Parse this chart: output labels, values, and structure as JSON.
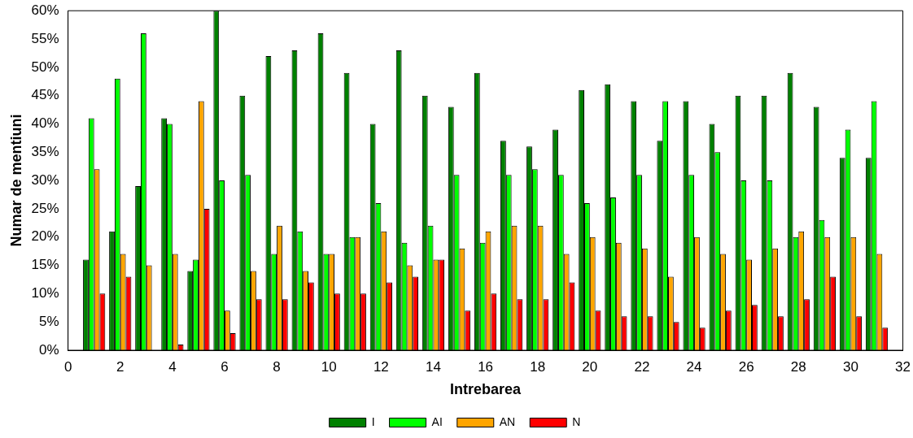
{
  "chart_data": {
    "type": "bar",
    "xlabel": "Intrebarea",
    "ylabel": "Numar de mentiuni",
    "x": [
      1,
      2,
      3,
      4,
      5,
      6,
      7,
      8,
      9,
      10,
      11,
      12,
      13,
      14,
      15,
      16,
      17,
      18,
      19,
      20,
      21,
      22,
      23,
      24,
      25,
      26,
      27,
      28,
      29,
      30,
      31
    ],
    "series": [
      {
        "name": "I",
        "color": "#008000",
        "values": [
          16,
          21,
          29,
          41,
          14,
          60,
          45,
          52,
          53,
          56,
          49,
          40,
          53,
          45,
          43,
          49,
          37,
          36,
          39,
          46,
          47,
          44,
          37,
          44,
          40,
          45,
          45,
          49,
          43,
          34,
          34
        ]
      },
      {
        "name": "AI",
        "color": "#00ff00",
        "values": [
          41,
          48,
          56,
          40,
          16,
          30,
          31,
          17,
          21,
          17,
          20,
          26,
          19,
          22,
          31,
          19,
          31,
          32,
          31,
          26,
          27,
          31,
          44,
          31,
          35,
          30,
          30,
          20,
          23,
          39,
          44
        ]
      },
      {
        "name": "AN",
        "color": "#ffa500",
        "values": [
          32,
          17,
          15,
          17,
          44,
          7,
          14,
          22,
          14,
          17,
          20,
          21,
          15,
          16,
          18,
          21,
          22,
          22,
          17,
          20,
          19,
          18,
          13,
          20,
          17,
          16,
          18,
          21,
          20,
          20,
          17
        ]
      },
      {
        "name": "N",
        "color": "#ff0000",
        "values": [
          10,
          13,
          0,
          1,
          25,
          3,
          9,
          9,
          12,
          10,
          10,
          12,
          13,
          16,
          7,
          10,
          9,
          9,
          12,
          7,
          6,
          6,
          5,
          4,
          7,
          8,
          6,
          9,
          13,
          6,
          4
        ]
      }
    ],
    "xlim": [
      0,
      32
    ],
    "xticks": [
      0,
      2,
      4,
      6,
      8,
      10,
      12,
      14,
      16,
      18,
      20,
      22,
      24,
      26,
      28,
      30,
      32
    ],
    "ylim": [
      0,
      60
    ],
    "yticks": [
      {
        "value": 0,
        "label": "0%"
      },
      {
        "value": 5,
        "label": "5%"
      },
      {
        "value": 10,
        "label": "10%"
      },
      {
        "value": 15,
        "label": "15%"
      },
      {
        "value": 20,
        "label": "20%"
      },
      {
        "value": 25,
        "label": "25%"
      },
      {
        "value": 30,
        "label": "30%"
      },
      {
        "value": 35,
        "label": "35%"
      },
      {
        "value": 40,
        "label": "40%"
      },
      {
        "value": 45,
        "label": "45%"
      },
      {
        "value": 50,
        "label": "50%"
      },
      {
        "value": 55,
        "label": "55%"
      },
      {
        "value": 60,
        "label": "60%"
      }
    ],
    "grid": false,
    "legend": "bottom"
  }
}
